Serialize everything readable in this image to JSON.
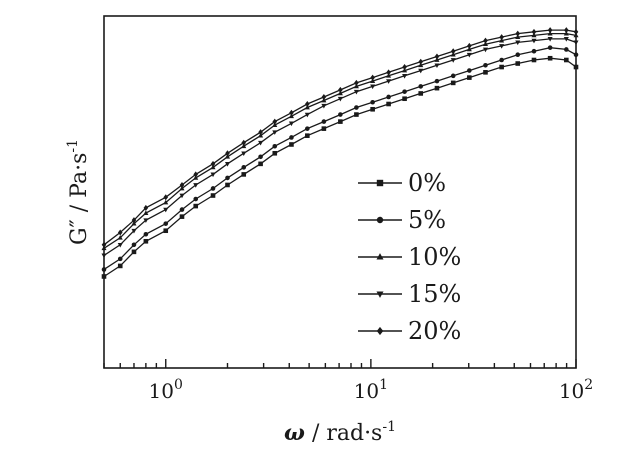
{
  "chart_data": {
    "type": "line",
    "title": "",
    "xlabel": {
      "symbol": "ω",
      "rest": " / rad·s",
      "exp": "-1"
    },
    "ylabel": {
      "symbol": "G″",
      "rest": "  / Pa·s",
      "exp": "-1"
    },
    "xscale": "log",
    "xlim": [
      0.5,
      100
    ],
    "ylim": [
      0,
      1
    ],
    "grid": false,
    "legend_position": "center-right",
    "x_ticks": [
      {
        "value": 1,
        "base": "10",
        "exp": "0"
      },
      {
        "value": 10,
        "base": "10",
        "exp": "1"
      },
      {
        "value": 100,
        "base": "10",
        "exp": "2"
      }
    ],
    "x": [
      0.5,
      0.6,
      0.7,
      0.8,
      1.0,
      1.2,
      1.4,
      1.7,
      2.0,
      2.4,
      2.9,
      3.4,
      4.1,
      4.9,
      5.9,
      7.1,
      8.5,
      10.2,
      12.2,
      14.6,
      17.5,
      21.0,
      25.2,
      30.2,
      36.2,
      43.4,
      52.0,
      62.4,
      74.8,
      89.7,
      100
    ],
    "series": [
      {
        "name": "0%",
        "marker": "square",
        "values": [
          0.26,
          0.29,
          0.33,
          0.36,
          0.39,
          0.43,
          0.46,
          0.49,
          0.52,
          0.55,
          0.58,
          0.61,
          0.635,
          0.66,
          0.68,
          0.7,
          0.72,
          0.735,
          0.75,
          0.765,
          0.78,
          0.795,
          0.81,
          0.825,
          0.84,
          0.855,
          0.865,
          0.875,
          0.88,
          0.875,
          0.855
        ]
      },
      {
        "name": "5%",
        "marker": "circle",
        "values": [
          0.28,
          0.31,
          0.35,
          0.38,
          0.41,
          0.45,
          0.48,
          0.51,
          0.54,
          0.57,
          0.6,
          0.63,
          0.655,
          0.68,
          0.7,
          0.72,
          0.74,
          0.755,
          0.77,
          0.785,
          0.8,
          0.815,
          0.83,
          0.845,
          0.86,
          0.875,
          0.89,
          0.9,
          0.91,
          0.905,
          0.89
        ]
      },
      {
        "name": "10%",
        "marker": "triangle-up",
        "values": [
          0.34,
          0.37,
          0.41,
          0.44,
          0.47,
          0.51,
          0.54,
          0.57,
          0.6,
          0.63,
          0.66,
          0.69,
          0.715,
          0.74,
          0.76,
          0.78,
          0.8,
          0.815,
          0.83,
          0.845,
          0.86,
          0.875,
          0.89,
          0.905,
          0.92,
          0.93,
          0.94,
          0.945,
          0.95,
          0.95,
          0.945
        ]
      },
      {
        "name": "15%",
        "marker": "triangle-down",
        "values": [
          0.32,
          0.35,
          0.39,
          0.42,
          0.45,
          0.49,
          0.52,
          0.55,
          0.58,
          0.61,
          0.64,
          0.67,
          0.695,
          0.72,
          0.745,
          0.765,
          0.785,
          0.8,
          0.815,
          0.83,
          0.845,
          0.86,
          0.875,
          0.89,
          0.905,
          0.915,
          0.925,
          0.93,
          0.935,
          0.935,
          0.925
        ]
      },
      {
        "name": "20%",
        "marker": "diamond",
        "values": [
          0.35,
          0.385,
          0.42,
          0.455,
          0.485,
          0.52,
          0.55,
          0.58,
          0.61,
          0.64,
          0.67,
          0.7,
          0.725,
          0.75,
          0.77,
          0.79,
          0.81,
          0.825,
          0.84,
          0.855,
          0.87,
          0.885,
          0.9,
          0.915,
          0.93,
          0.94,
          0.95,
          0.955,
          0.96,
          0.96,
          0.955
        ]
      }
    ]
  }
}
